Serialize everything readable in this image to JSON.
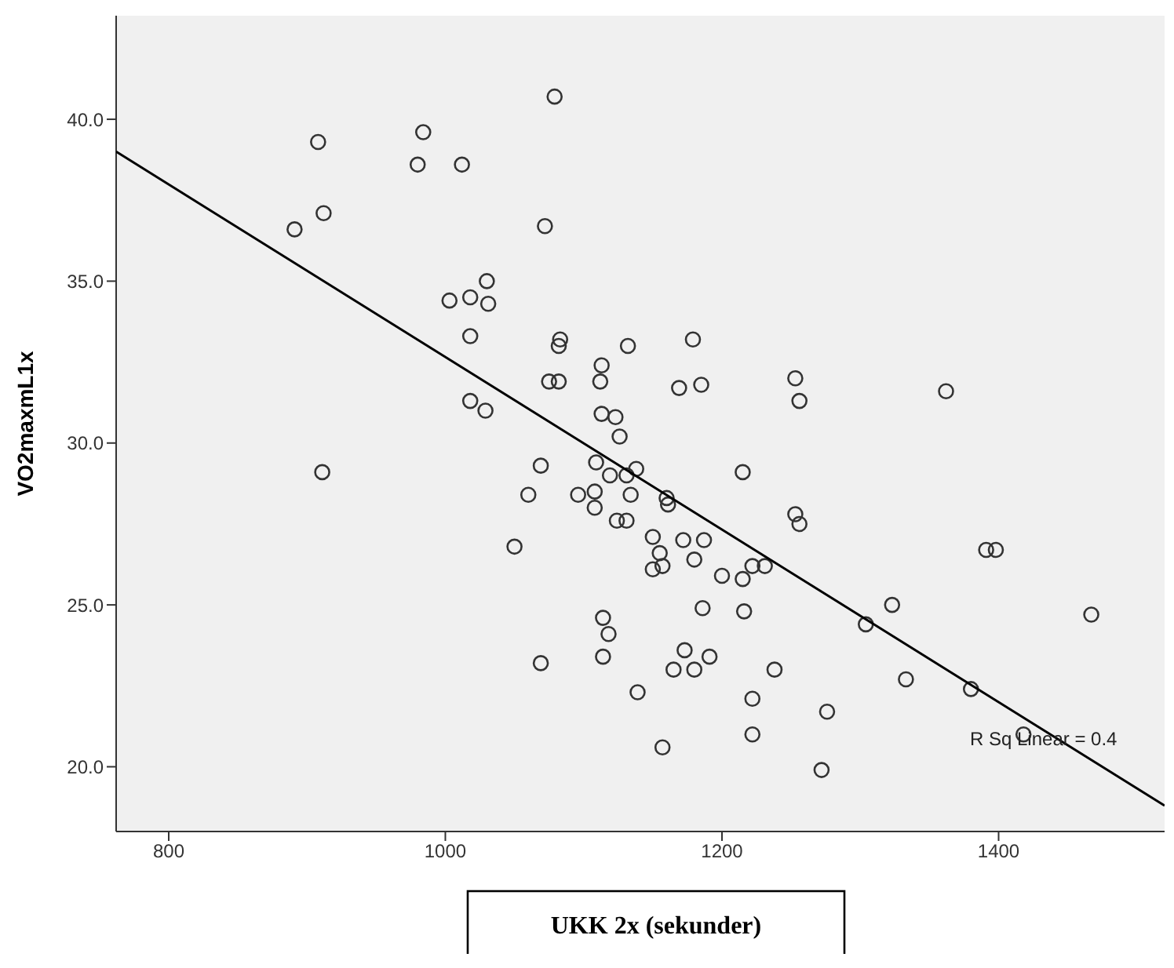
{
  "chart_data": {
    "type": "scatter",
    "xlabel": "UKK 2x (sekunder)",
    "ylabel": "VO2maxmL1x",
    "xlim": [
      762,
      1520
    ],
    "xticks": [
      800,
      1000,
      1200,
      1400
    ],
    "ylim": [
      18.0,
      43.2
    ],
    "yticks": [
      {
        "value": 20,
        "label": "20.0"
      },
      {
        "value": 25,
        "label": "25.0"
      },
      {
        "value": 30,
        "label": "30.0"
      },
      {
        "value": 35,
        "label": "35.0"
      },
      {
        "value": 40,
        "label": "40.0"
      }
    ],
    "grid": false,
    "legend": false,
    "annotations": [
      "R Sq Linear = 0.4"
    ],
    "series": [
      {
        "marker": "circle",
        "color": "#333333",
        "x": [
          891,
          908,
          912,
          911,
          980,
          984,
          1012,
          1003,
          1018,
          1030,
          1031,
          1018,
          1018,
          1029,
          1072,
          1079,
          1082,
          1083,
          1075,
          1082,
          1113,
          1112,
          1132,
          1179,
          1185,
          1169,
          1253,
          1256,
          1362,
          1113,
          1123,
          1126,
          1069,
          1109,
          1119,
          1138,
          1131,
          1060,
          1096,
          1108,
          1134,
          1108,
          1124,
          1131,
          1160,
          1161,
          1215,
          1253,
          1256,
          1150,
          1172,
          1187,
          1155,
          1157,
          1150,
          1180,
          1200,
          1215,
          1222,
          1231,
          1050,
          1114,
          1118,
          1114,
          1069,
          1186,
          1216,
          1173,
          1165,
          1180,
          1191,
          1238,
          1139,
          1222,
          1222,
          1157,
          1276,
          1272,
          1304,
          1323,
          1333,
          1380,
          1391,
          1398,
          1418,
          1467
        ],
        "values": [
          36.6,
          39.3,
          37.1,
          29.1,
          38.6,
          39.6,
          38.6,
          34.4,
          34.5,
          35.0,
          34.3,
          33.3,
          31.3,
          31.0,
          36.7,
          40.7,
          33.0,
          33.2,
          31.9,
          31.9,
          32.4,
          31.9,
          33.0,
          33.2,
          31.8,
          31.7,
          32.0,
          31.3,
          31.6,
          30.9,
          30.8,
          30.2,
          29.3,
          29.4,
          29.0,
          29.2,
          29.0,
          28.4,
          28.4,
          28.5,
          28.4,
          28.0,
          27.6,
          27.6,
          28.3,
          28.1,
          29.1,
          27.8,
          27.5,
          27.1,
          27.0,
          27.0,
          26.6,
          26.2,
          26.1,
          26.4,
          25.9,
          25.8,
          26.2,
          26.2,
          26.8,
          24.6,
          24.1,
          23.4,
          23.2,
          24.9,
          24.8,
          23.6,
          23.0,
          23.0,
          23.4,
          23.0,
          22.3,
          22.1,
          21.0,
          20.6,
          21.7,
          19.9,
          24.4,
          25.0,
          22.7,
          22.4,
          26.7,
          26.7,
          21.0,
          24.7
        ]
      },
      {
        "type": "line",
        "color": "#000000",
        "x": [
          762,
          1520
        ],
        "values": [
          39.0,
          18.8
        ]
      }
    ]
  }
}
